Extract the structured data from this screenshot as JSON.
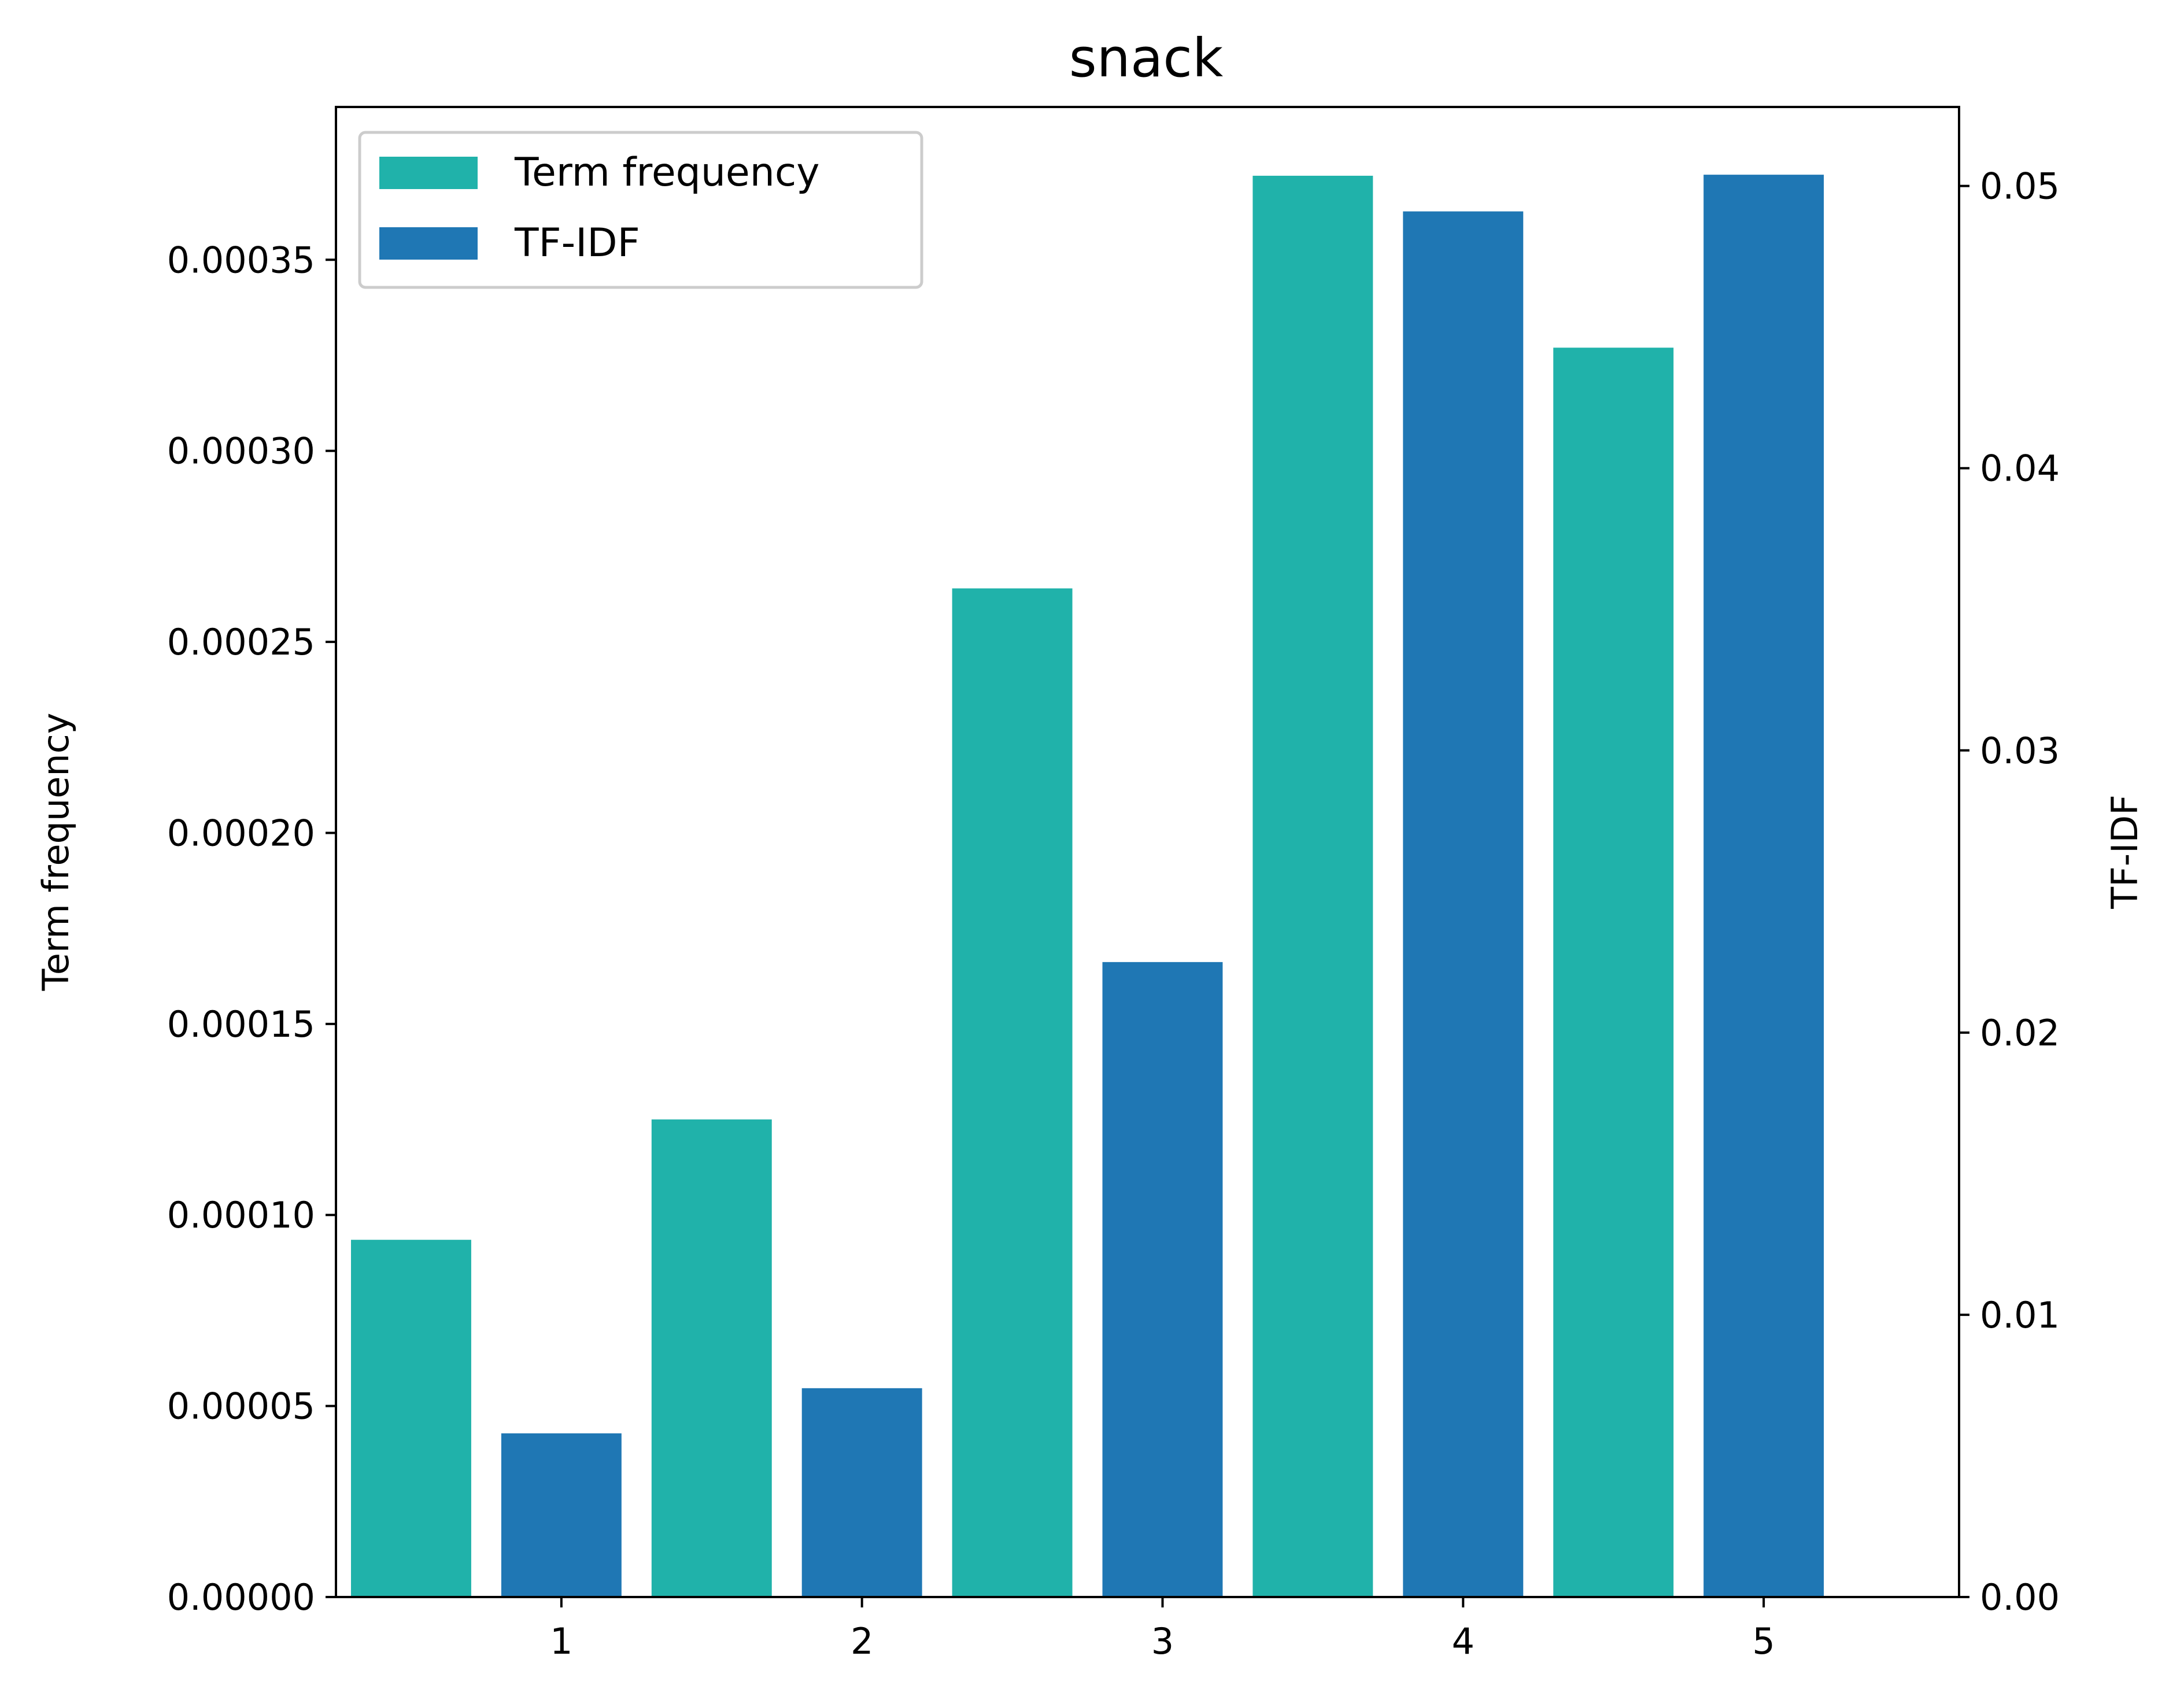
{
  "chart_data": {
    "type": "bar",
    "title": "snack",
    "categories": [
      "1",
      "2",
      "3",
      "4",
      "5"
    ],
    "series": [
      {
        "name": "Term frequency",
        "axis": "left",
        "color": "#20b2aa",
        "values": [
          9.35e-05,
          0.000125,
          0.000264,
          0.000372,
          0.000327
        ]
      },
      {
        "name": "TF-IDF",
        "axis": "right",
        "color": "#1f77b4",
        "values": [
          0.0058,
          0.0074,
          0.0225,
          0.0491,
          0.0504
        ]
      }
    ],
    "left_axis": {
      "label": "Term frequency",
      "ylim": [
        0,
        0.00039
      ],
      "ticks": [
        "0.00000",
        "0.00005",
        "0.00010",
        "0.00015",
        "0.00020",
        "0.00025",
        "0.00030",
        "0.00035"
      ]
    },
    "right_axis": {
      "label": "TF-IDF",
      "ylim": [
        0,
        0.0528
      ],
      "ticks": [
        "0.00",
        "0.01",
        "0.02",
        "0.03",
        "0.04",
        "0.05"
      ]
    },
    "x_range": [
      0.25,
      5.65
    ],
    "legend": {
      "placement": "top-left",
      "entries": [
        "Term frequency",
        "TF-IDF"
      ]
    },
    "grid": false
  }
}
